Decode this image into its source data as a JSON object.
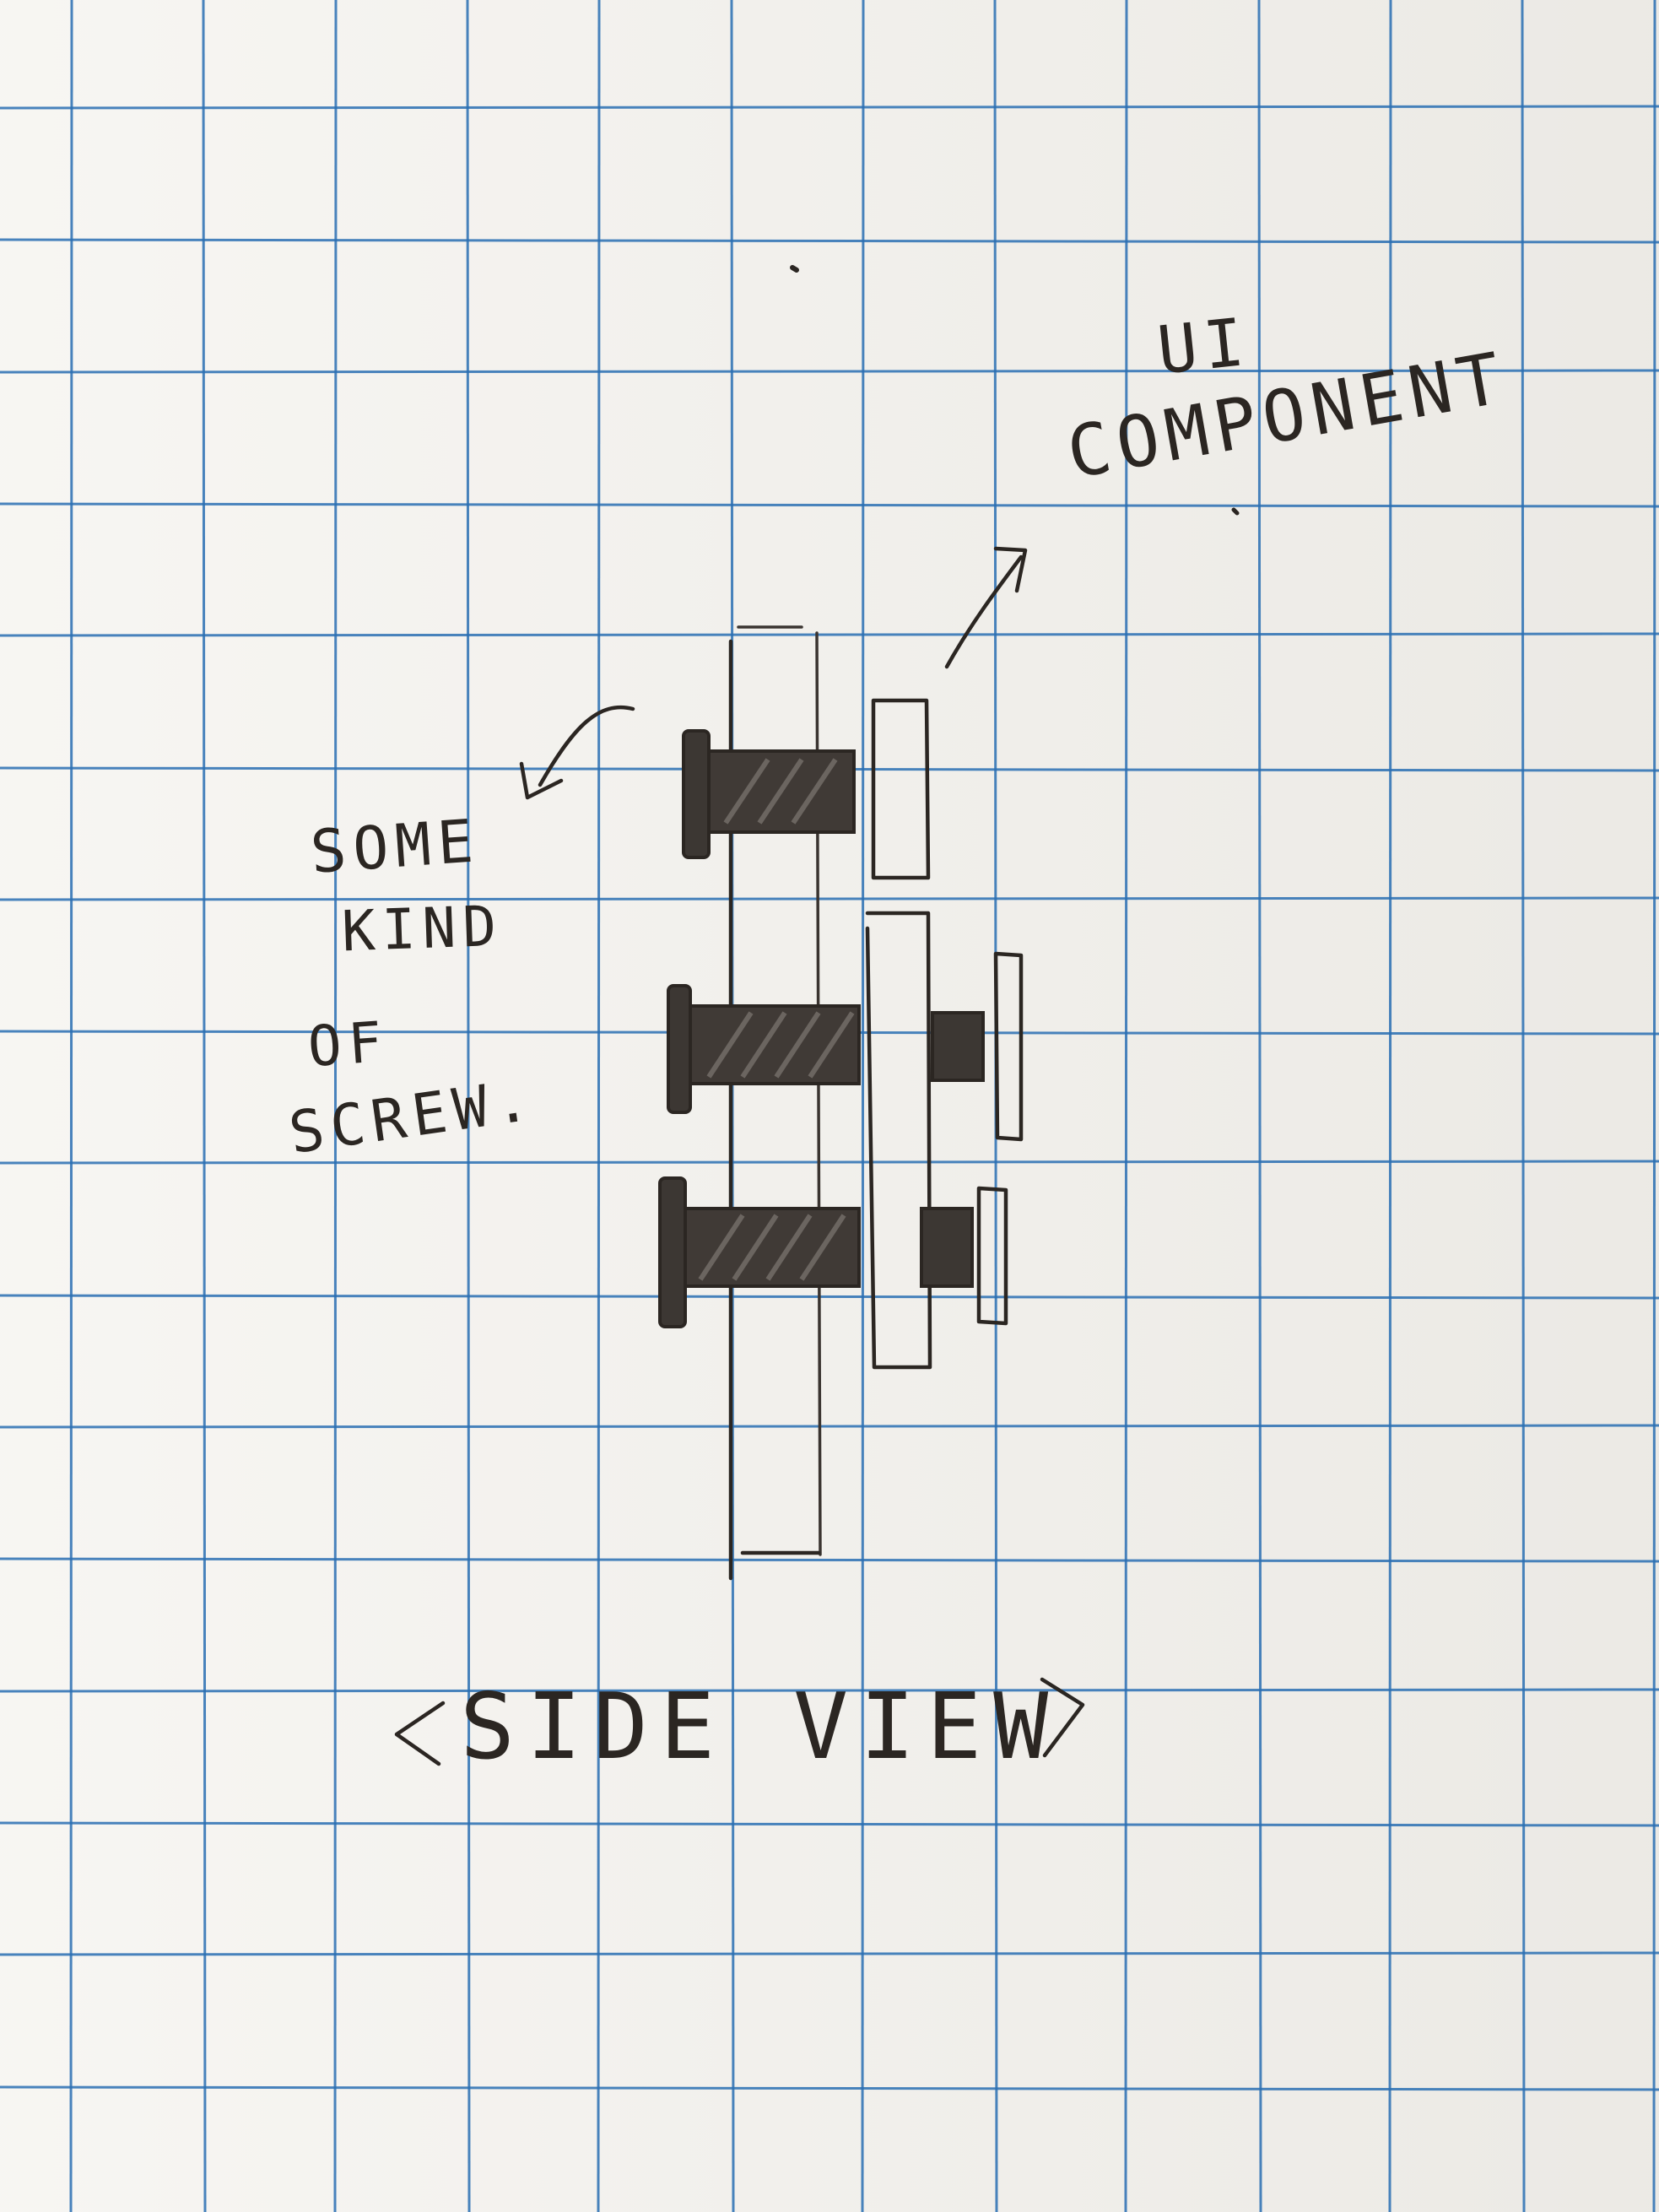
{
  "labels": {
    "component_line1": "UI",
    "component_line2": "COMPONENT",
    "screw_line1": "SOME",
    "screw_line2": "KIND",
    "screw_line3": "OF",
    "screw_line4": "SCREW.",
    "caption": "<SIDE VIEW>"
  },
  "colors": {
    "paper": "#f3f1ec",
    "grid_line": "#2a6fb3",
    "ink": "#2b2622",
    "pencil": "#5a5550"
  }
}
